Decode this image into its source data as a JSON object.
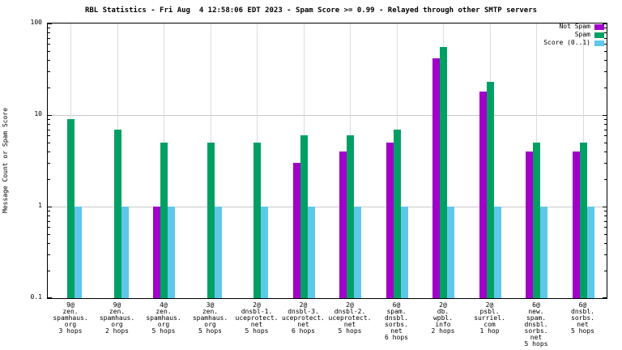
{
  "title": "RBL Statistics - Fri Aug  4 12:58:06 EDT 2023 - Spam Score >= 0.99 - Relayed through other SMTP servers",
  "y_axis_label": "Message Count or Spam Score",
  "y_ticks": [
    "100",
    "10",
    "1",
    "0.1"
  ],
  "legend": {
    "position": "top-right",
    "entries": [
      {
        "label": "Not Spam",
        "color": "#a000c8"
      },
      {
        "label": "Spam",
        "color": "#00a065"
      },
      {
        "label": "Score (0..1)",
        "color": "#5ec8ea"
      }
    ]
  },
  "chart_data": {
    "type": "bar",
    "scale": "log",
    "title": "RBL Statistics - Fri Aug  4 12:58:06 EDT 2023 - Spam Score >= 0.99 - Relayed through other SMTP servers",
    "xlabel": "",
    "ylabel": "Message Count or Spam Score",
    "ylim": [
      0.1,
      100
    ],
    "grid": true,
    "categories": [
      [
        "9@",
        "zen.",
        "spamhaus.",
        "org",
        "3 hops"
      ],
      [
        "9@",
        "zen.",
        "spamhaus.",
        "org",
        "2 hops"
      ],
      [
        "4@",
        "zen.",
        "spamhaus.",
        "org",
        "5 hops"
      ],
      [
        "3@",
        "zen.",
        "spamhaus.",
        "org",
        "5 hops"
      ],
      [
        "2@",
        "dnsbl-1.",
        "uceprotect.",
        "net",
        "5 hops"
      ],
      [
        "2@",
        "dnsbl-3.",
        "uceprotect.",
        "net",
        "6 hops"
      ],
      [
        "2@",
        "dnsbl-2.",
        "uceprotect.",
        "net",
        "5 hops"
      ],
      [
        "6@",
        "spam.",
        "dnsbl.",
        "sorbs.",
        "net",
        "6 hops"
      ],
      [
        "2@",
        "db.",
        "wpbl.",
        "info",
        "2 hops"
      ],
      [
        "2@",
        "psbl.",
        "surriel.",
        "com",
        "1 hop"
      ],
      [
        "6@",
        "new.",
        "spam.",
        "dnsbl.",
        "sorbs.",
        "net",
        "5 hops"
      ],
      [
        "6@",
        "dnsbl.",
        "sorbs.",
        "net",
        "5 hops"
      ]
    ],
    "series": [
      {
        "name": "Not Spam",
        "color": "#a000c8",
        "values": [
          0,
          0,
          1,
          0,
          0,
          3,
          4,
          5,
          42,
          18,
          4,
          4
        ]
      },
      {
        "name": "Spam",
        "color": "#00a065",
        "values": [
          9,
          7,
          5,
          5,
          5,
          6,
          6,
          7,
          55,
          23,
          5,
          5
        ]
      },
      {
        "name": "Score (0..1)",
        "color": "#5ec8ea",
        "values": [
          1,
          1,
          1,
          1,
          1,
          1,
          1,
          1,
          1,
          1,
          1,
          1
        ]
      }
    ]
  }
}
